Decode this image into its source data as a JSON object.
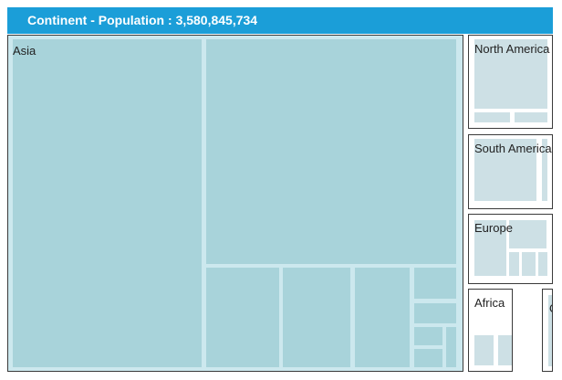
{
  "header": {
    "level_name": "Continent",
    "separator": " - ",
    "measure_label": "Population :",
    "total": "3,580,845,734"
  },
  "colors": {
    "header_bg": "#1b9ed8",
    "asia_cell": "#a8d3da",
    "asia_gap": "#cce8ee",
    "other_cell": "#cde0e5",
    "border": "#3a3a3a"
  },
  "chart_data": {
    "type": "treemap",
    "title": "Continent - Population : 3,580,845,734",
    "level": "Continent",
    "measure": "Population",
    "groups": [
      {
        "name": "Asia",
        "label": "Asia",
        "children": 10
      },
      {
        "name": "North America",
        "label": "North America",
        "children": 3
      },
      {
        "name": "South America",
        "label": "South America",
        "children": 2
      },
      {
        "name": "Europe",
        "label": "Europe",
        "children": 5
      },
      {
        "name": "Africa",
        "label": "Africa",
        "children": 3
      },
      {
        "name": "Oceania",
        "label": "O",
        "children": 1
      }
    ]
  }
}
